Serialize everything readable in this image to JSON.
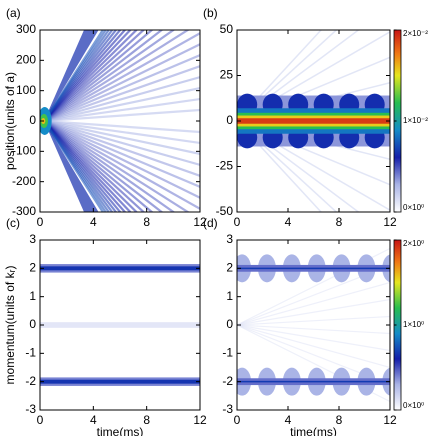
{
  "chart_data": [
    {
      "type": "heatmap",
      "panel_label": "(a)",
      "ylabel": "position(units of a)",
      "xlim": [
        0,
        12
      ],
      "xticks": [
        0,
        4,
        8,
        12
      ],
      "ylim": [
        -300,
        300
      ],
      "yticks": [
        -300,
        -200,
        -100,
        0,
        100,
        200,
        300
      ]
    },
    {
      "type": "heatmap",
      "panel_label": "(b)",
      "xlim": [
        0,
        12
      ],
      "xticks": [
        0,
        4,
        8,
        12
      ],
      "ylim": [
        -50,
        50
      ],
      "yticks": [
        -50,
        -25,
        0,
        25,
        50
      ],
      "colorbar": {
        "lim": [
          0,
          0.02
        ],
        "ticks": [
          {
            "value": 0,
            "label": "0×10⁰"
          },
          {
            "value": 0.01,
            "label": "1×10⁻²"
          },
          {
            "value": 0.02,
            "label": "2×10⁻²"
          }
        ]
      }
    },
    {
      "type": "heatmap",
      "panel_label": "(c)",
      "ylabel": "momentum(units of kᵣ)",
      "xlabel": "time(ms)",
      "xlim": [
        0,
        12
      ],
      "xticks": [
        0,
        4,
        8,
        12
      ],
      "ylim": [
        -3,
        3
      ],
      "yticks": [
        -3,
        -2,
        -1,
        0,
        1,
        2,
        3
      ]
    },
    {
      "type": "heatmap",
      "panel_label": "(d)",
      "xlabel": "time(ms)",
      "xlim": [
        0,
        12
      ],
      "xticks": [
        0,
        4,
        8,
        12
      ],
      "ylim": [
        -3,
        3
      ],
      "yticks": [
        -3,
        -2,
        -1,
        0,
        1,
        2,
        3
      ],
      "colorbar": {
        "lim": [
          0,
          2
        ],
        "ticks": [
          {
            "value": 0,
            "label": "0×10⁰"
          },
          {
            "value": 1,
            "label": "1×10⁰"
          },
          {
            "value": 2,
            "label": "2×10⁰"
          }
        ]
      }
    }
  ]
}
